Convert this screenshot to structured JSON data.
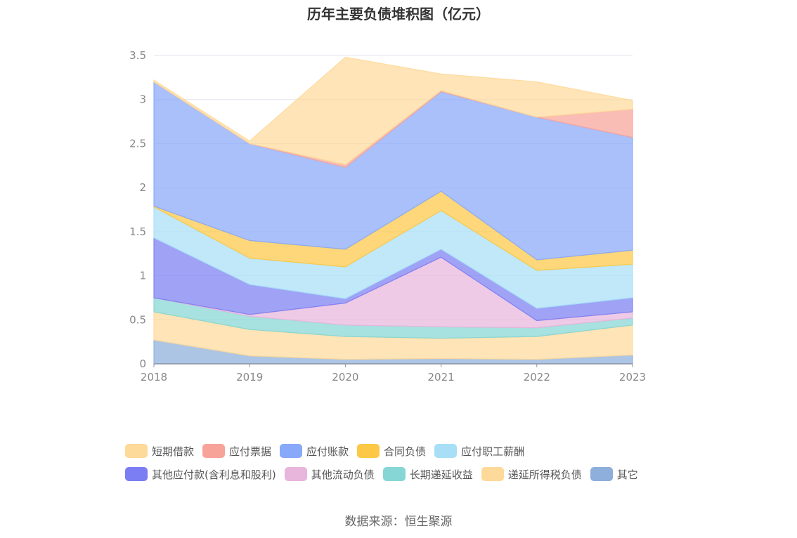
{
  "chart_data": {
    "type": "area",
    "title": "历年主要负债堆积图（亿元）",
    "source": "数据来源：恒生聚源",
    "x": [
      "2018",
      "2019",
      "2020",
      "2021",
      "2022",
      "2023"
    ],
    "ylim": [
      0,
      3.5
    ],
    "yticks": [
      "0",
      "0.5",
      "1",
      "1.5",
      "2",
      "2.5",
      "3",
      "3.5"
    ],
    "stacked": true,
    "grid": true,
    "legend_position": "bottom",
    "series": [
      {
        "name": "其它",
        "color": "#8eaedb",
        "values": [
          0.27,
          0.09,
          0.05,
          0.06,
          0.05,
          0.1
        ]
      },
      {
        "name": "递延所得税负债",
        "color": "#fdd99a",
        "values": [
          0.32,
          0.3,
          0.26,
          0.23,
          0.26,
          0.34
        ]
      },
      {
        "name": "长期递延收益",
        "color": "#85d6d4",
        "values": [
          0.16,
          0.15,
          0.13,
          0.13,
          0.1,
          0.08
        ]
      },
      {
        "name": "其他流动负债",
        "color": "#e8b5dc",
        "values": [
          0.0,
          0.02,
          0.25,
          0.79,
          0.08,
          0.07
        ]
      },
      {
        "name": "其他应付款(含利息和股利)",
        "color": "#7b7ef3",
        "values": [
          0.68,
          0.34,
          0.05,
          0.09,
          0.14,
          0.16
        ]
      },
      {
        "name": "应付职工薪酬",
        "color": "#a8dff7",
        "values": [
          0.35,
          0.3,
          0.36,
          0.44,
          0.43,
          0.38
        ]
      },
      {
        "name": "合同负债",
        "color": "#fcc845",
        "values": [
          0.01,
          0.2,
          0.2,
          0.22,
          0.12,
          0.16
        ]
      },
      {
        "name": "应付账款",
        "color": "#88a8fa",
        "values": [
          1.41,
          1.1,
          0.93,
          1.13,
          1.62,
          1.28
        ]
      },
      {
        "name": "应付票据",
        "color": "#f8a39a",
        "values": [
          0.0,
          0.0,
          0.03,
          0.01,
          0.0,
          0.32
        ]
      },
      {
        "name": "短期借款",
        "color": "#fdd99a",
        "values": [
          0.02,
          0.03,
          1.22,
          0.19,
          0.4,
          0.1
        ]
      }
    ],
    "legend_order": [
      "短期借款",
      "应付票据",
      "应付账款",
      "合同负债",
      "应付职工薪酬",
      "其他应付款(含利息和股利)",
      "其他流动负债",
      "长期递延收益",
      "递延所得税负债",
      "其它"
    ]
  }
}
